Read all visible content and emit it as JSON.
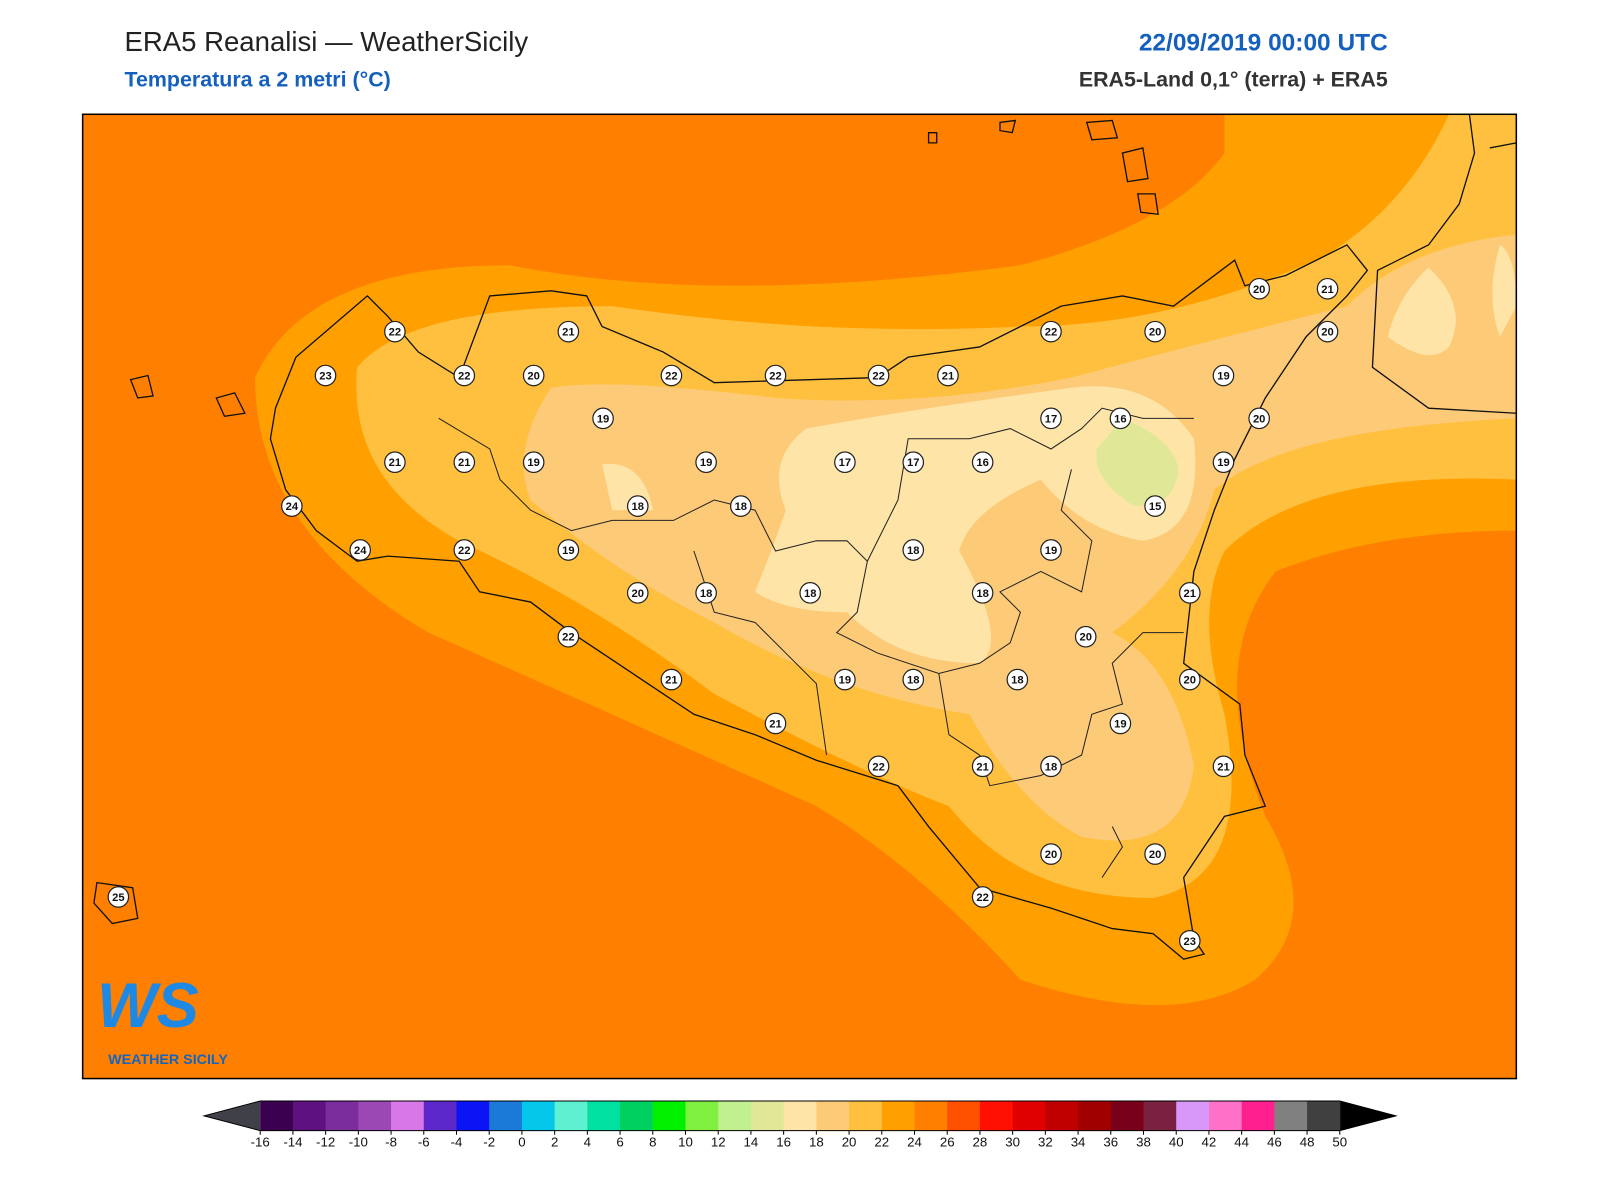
{
  "header": {
    "title": "ERA5 Reanalisi — WeatherSicily",
    "subtitle": "Temperatura a 2 metri (°C)",
    "date": "22/09/2019 00:00 UTC",
    "source": "ERA5-Land 0,1° (terra) + ERA5"
  },
  "stations": [
    22,
    21,
    23,
    22,
    20,
    22,
    22,
    22,
    21,
    22,
    20,
    20,
    21,
    20,
    19,
    19,
    17,
    16,
    20,
    21,
    21,
    19,
    19,
    17,
    17,
    16,
    19,
    24,
    18,
    18,
    15,
    24,
    22,
    19,
    18,
    19,
    20,
    18,
    18,
    18,
    21,
    22,
    20,
    21,
    19,
    18,
    18,
    20,
    21,
    19,
    22,
    21,
    18,
    21,
    20,
    20,
    22,
    25,
    23
  ],
  "colorbar": {
    "ticks": [
      -16,
      -14,
      -12,
      -10,
      -8,
      -6,
      -4,
      -2,
      0,
      2,
      4,
      6,
      8,
      10,
      12,
      14,
      16,
      18,
      20,
      22,
      24,
      26,
      28,
      30,
      32,
      34,
      36,
      38,
      40,
      42,
      44,
      46,
      48,
      50
    ],
    "colors": [
      "#3c0051",
      "#5e127f",
      "#7b2d9e",
      "#9b48b5",
      "#d877e8",
      "#5c28c9",
      "#0a14f5",
      "#1b7ad8",
      "#05c7ea",
      "#5ef0d0",
      "#00e0a0",
      "#00d060",
      "#00f000",
      "#80f040",
      "#c0f090",
      "#e0e898",
      "#ffe4a8",
      "#fdca78",
      "#ffc040",
      "#ffa000",
      "#ff8000",
      "#ff5000",
      "#ff1000",
      "#e00000",
      "#c00000",
      "#a00000",
      "#780018",
      "#7a2040",
      "#d898f8",
      "#ff70c8",
      "#ff2090",
      "#808080",
      "#404040"
    ],
    "under": "#404048",
    "over": "#000000"
  },
  "logo": {
    "mark": "WS",
    "name": "WEATHER SICILY"
  }
}
